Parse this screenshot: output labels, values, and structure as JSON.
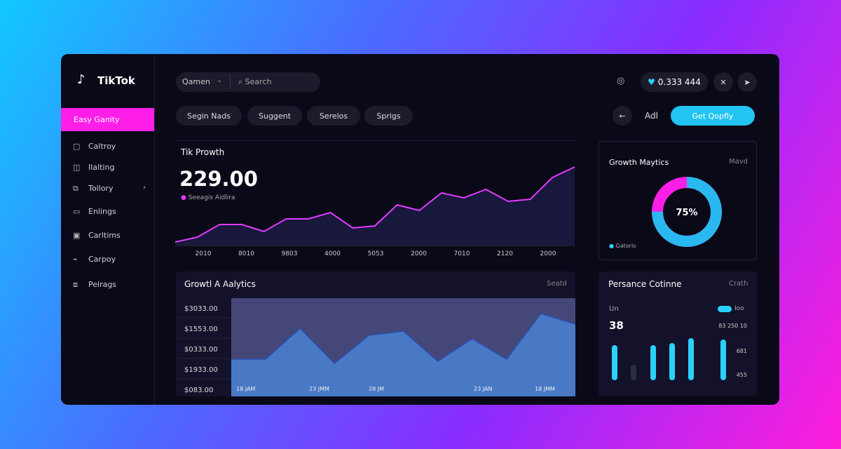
{
  "sidebar": {
    "brand": "TikTok",
    "active": "Easy Ganity",
    "items": [
      "Caltroy",
      "Ilalting",
      "Tollory",
      "Enlings",
      "Carltims",
      "Carpoy",
      "Pelrags"
    ]
  },
  "topbar": {
    "select": "Qamen",
    "search": "Search",
    "balance": "0.333 444"
  },
  "filters": [
    "Segin Nads",
    "Suggent",
    "Serelos",
    "Sprigs"
  ],
  "actions": {
    "label": "Adl",
    "button": "Get Qopfly"
  },
  "growth": {
    "title": "Tik Prowth",
    "value": "229.00",
    "legend": "Seeagis Aidlira",
    "x_labels": [
      "2010",
      "8010",
      "9803",
      "4000",
      "5053",
      "2000",
      "7010",
      "2120",
      "2000"
    ],
    "values": [
      5,
      12,
      30,
      30,
      20,
      38,
      38,
      47,
      25,
      28,
      58,
      50,
      75,
      68,
      80,
      63,
      66,
      97,
      112
    ],
    "ylim": [
      0,
      120
    ],
    "color": "#e23bff"
  },
  "analytics": {
    "title": "Growtl A Aalytics",
    "action": "Seatd",
    "y_labels": [
      "$3033.00",
      "$1553.00",
      "$0333.00",
      "$1933.00",
      "$083.00"
    ],
    "x_labels": [
      "18 JAM",
      "23 JMM",
      "28 JM",
      "23 JAN",
      "18 JMM"
    ],
    "values": [
      53,
      53,
      97,
      47,
      87,
      93,
      50,
      82,
      53,
      118,
      103
    ],
    "ylim": [
      0,
      140
    ],
    "color": "#2a4fb0"
  },
  "donut": {
    "title": "Growth Maytics",
    "action": "Mavd",
    "value": 75,
    "value_label": "75%",
    "legend": "Gatoris"
  },
  "performance": {
    "title": "Persance Cotinne",
    "action": "Crath",
    "stat_label": "Un",
    "stat": "38",
    "toggle": "Ioo",
    "labels": [
      "83 250 10",
      "681",
      "455"
    ],
    "values": [
      50,
      22,
      50,
      53,
      60,
      58
    ],
    "ylim": [
      0,
      70
    ]
  }
}
